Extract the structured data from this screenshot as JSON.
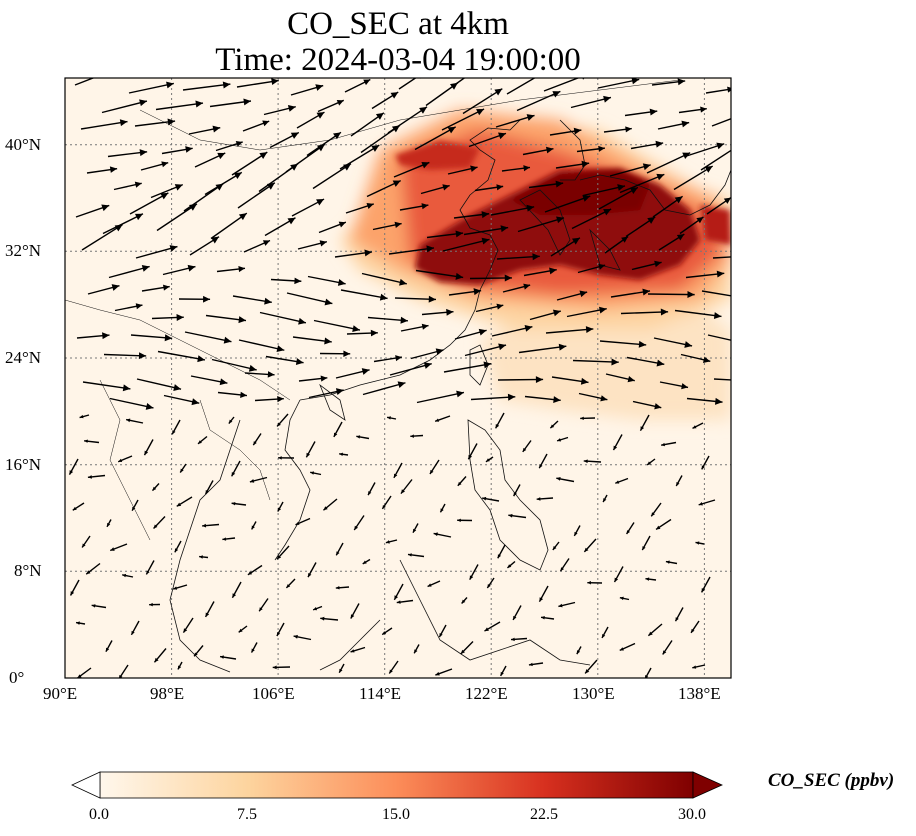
{
  "title": {
    "line1": "CO_SEC at 4km",
    "line2": "Time: 2024-03-04 19:00:00"
  },
  "map": {
    "lon_range": [
      90,
      140
    ],
    "lat_range": [
      0,
      44
    ],
    "lat_ticks": [
      "0°",
      "8°N",
      "16°N",
      "24°N",
      "32°N",
      "40°N"
    ],
    "lat_tick_values": [
      0,
      8,
      16,
      24,
      32,
      40
    ],
    "lon_ticks": [
      "90°E",
      "98°E",
      "106°E",
      "114°E",
      "122°E",
      "130°E",
      "138°E"
    ],
    "lon_tick_values": [
      90,
      98,
      106,
      114,
      122,
      130,
      138
    ],
    "gridlines": true,
    "wind_vectors": true,
    "colormap": "OrRd"
  },
  "colorbar": {
    "label": "CO_SEC (ppbv)",
    "min": 0.0,
    "max": 30.0,
    "ticks": [
      "0.0",
      "7.5",
      "15.0",
      "22.5",
      "30.0"
    ],
    "tick_values": [
      0,
      7.5,
      15,
      22.5,
      30
    ],
    "extend": "both",
    "colors": [
      "#fff7ec",
      "#fdd49e",
      "#fc8d59",
      "#d7301f",
      "#7f0000"
    ]
  }
}
